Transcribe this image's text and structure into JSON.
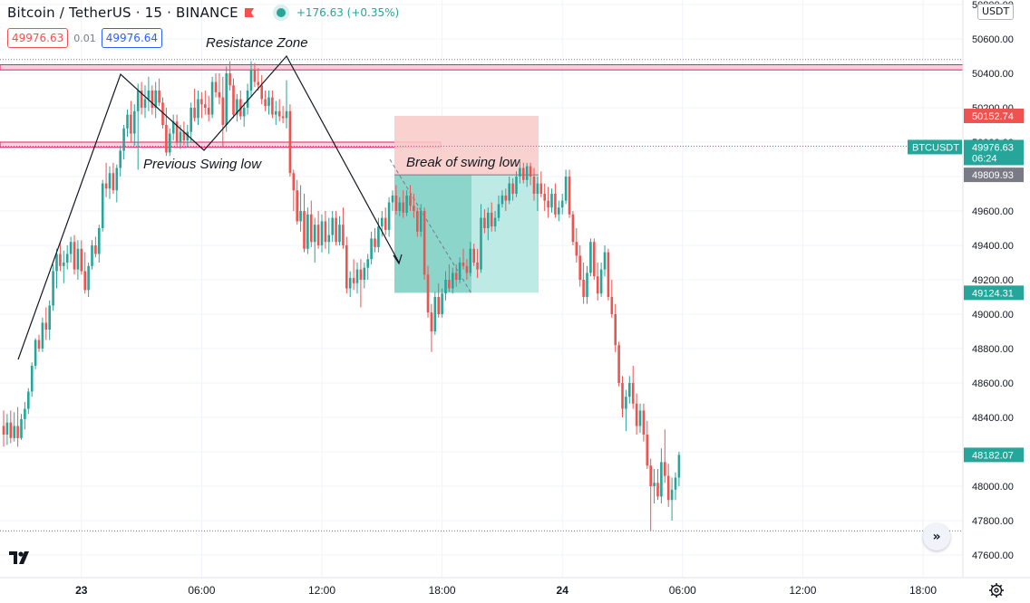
{
  "header": {
    "symbol": "Bitcoin / TetherUS · 15 · BINANCE",
    "change": "+176.63 (+0.35%)",
    "sell_price": "49976.63",
    "spread": "0.01",
    "buy_price": "49976.64",
    "currency": "USDT"
  },
  "colors": {
    "up": "#26a69a",
    "down": "#ef5350",
    "zone": "#f48fb1",
    "stop": "#f8c9c7",
    "target": "#b2e6e0"
  },
  "chart_data": {
    "type": "candlestick",
    "ylim": [
      47500,
      50850
    ],
    "y_ticks": [
      47600,
      47800,
      48000,
      48200,
      48400,
      48600,
      48800,
      49000,
      49200,
      49400,
      49600,
      49800,
      50000,
      50200,
      50400,
      50600,
      50800
    ],
    "y_tick_labels": [
      "47600.00",
      "47800.00",
      "48000.00",
      "48200.00",
      "48400.00",
      "48600.00",
      "48800.00",
      "49000.00",
      "49200.00",
      "49400.00",
      "49600.00",
      "49800.00",
      "50000.00",
      "50200.00",
      "50400.00",
      "50600.00",
      "50800.00"
    ],
    "x_ticks": [
      {
        "slot": 22,
        "label": "23",
        "bold": true
      },
      {
        "slot": 56,
        "label": "06:00"
      },
      {
        "slot": 90,
        "label": "12:00"
      },
      {
        "slot": 124,
        "label": "18:00"
      },
      {
        "slot": 158,
        "label": "24",
        "bold": true
      },
      {
        "slot": 192,
        "label": "06:00"
      },
      {
        "slot": 226,
        "label": "12:00"
      },
      {
        "slot": 260,
        "label": "18:00"
      }
    ],
    "candles": [
      [
        48350,
        48440,
        48230,
        48300
      ],
      [
        48300,
        48420,
        48240,
        48370
      ],
      [
        48370,
        48440,
        48250,
        48280
      ],
      [
        48280,
        48430,
        48260,
        48350
      ],
      [
        48350,
        48460,
        48230,
        48280
      ],
      [
        48280,
        48420,
        48270,
        48390
      ],
      [
        48390,
        48490,
        48330,
        48450
      ],
      [
        48450,
        48570,
        48420,
        48550
      ],
      [
        48550,
        48720,
        48520,
        48700
      ],
      [
        48700,
        48860,
        48680,
        48850
      ],
      [
        48850,
        48880,
        48780,
        48800
      ],
      [
        48800,
        48980,
        48780,
        48950
      ],
      [
        48950,
        49040,
        48850,
        48910
      ],
      [
        48910,
        49080,
        48850,
        49050
      ],
      [
        49050,
        49290,
        49020,
        49250
      ],
      [
        49250,
        49380,
        49150,
        49350
      ],
      [
        49350,
        49420,
        49250,
        49280
      ],
      [
        49280,
        49370,
        49180,
        49300
      ],
      [
        49300,
        49400,
        49260,
        49350
      ],
      [
        49350,
        49450,
        49300,
        49420
      ],
      [
        49420,
        49460,
        49230,
        49260
      ],
      [
        49260,
        49430,
        49200,
        49380
      ],
      [
        49380,
        49430,
        49230,
        49250
      ],
      [
        49250,
        49360,
        49120,
        49140
      ],
      [
        49140,
        49300,
        49100,
        49280
      ],
      [
        49280,
        49430,
        49260,
        49400
      ],
      [
        49400,
        49450,
        49330,
        49350
      ],
      [
        49350,
        49520,
        49300,
        49500
      ],
      [
        49500,
        49780,
        49480,
        49760
      ],
      [
        49760,
        49880,
        49680,
        49730
      ],
      [
        49730,
        49860,
        49670,
        49820
      ],
      [
        49820,
        49880,
        49700,
        49720
      ],
      [
        49720,
        49870,
        49650,
        49850
      ],
      [
        49850,
        49980,
        49800,
        49950
      ],
      [
        49950,
        50100,
        49900,
        50080
      ],
      [
        50080,
        50190,
        50030,
        50160
      ],
      [
        50160,
        50240,
        50000,
        50050
      ],
      [
        50050,
        50220,
        49980,
        50180
      ],
      [
        50180,
        50340,
        49840,
        50300
      ],
      [
        50300,
        50350,
        50160,
        50200
      ],
      [
        50200,
        50330,
        50140,
        50250
      ],
      [
        50250,
        50380,
        50180,
        50300
      ],
      [
        50300,
        50330,
        50160,
        50200
      ],
      [
        50200,
        50350,
        50140,
        50300
      ],
      [
        50300,
        50370,
        50210,
        50230
      ],
      [
        50230,
        50260,
        50080,
        50100
      ],
      [
        50100,
        50200,
        49920,
        49940
      ],
      [
        49940,
        50080,
        49920,
        50050
      ],
      [
        50050,
        50160,
        50010,
        50120
      ],
      [
        50120,
        50160,
        49980,
        50000
      ],
      [
        50000,
        50100,
        49960,
        50060
      ],
      [
        50060,
        50120,
        49980,
        50010
      ],
      [
        50010,
        50100,
        49970,
        50060
      ],
      [
        50060,
        50230,
        50000,
        50200
      ],
      [
        50200,
        50310,
        50120,
        50140
      ],
      [
        50140,
        50300,
        50100,
        50250
      ],
      [
        50250,
        50290,
        50140,
        50220
      ],
      [
        50220,
        50300,
        50160,
        50200
      ],
      [
        50200,
        50270,
        50120,
        50160
      ],
      [
        50160,
        50380,
        50140,
        50350
      ],
      [
        50350,
        50400,
        50260,
        50290
      ],
      [
        50290,
        50400,
        50220,
        50260
      ],
      [
        50260,
        50380,
        49970,
        50100
      ],
      [
        50100,
        50440,
        50060,
        50400
      ],
      [
        50400,
        50470,
        50300,
        50330
      ],
      [
        50330,
        50370,
        50140,
        50160
      ],
      [
        50160,
        50280,
        50120,
        50250
      ],
      [
        50250,
        50300,
        50130,
        50150
      ],
      [
        50150,
        50230,
        50090,
        50200
      ],
      [
        50200,
        50340,
        50160,
        50300
      ],
      [
        50300,
        50470,
        50260,
        50420
      ],
      [
        50420,
        50460,
        50320,
        50350
      ],
      [
        50350,
        50430,
        50300,
        50330
      ],
      [
        50330,
        50390,
        50220,
        50250
      ],
      [
        50250,
        50300,
        50180,
        50210
      ],
      [
        50210,
        50300,
        50160,
        50260
      ],
      [
        50260,
        50300,
        50140,
        50160
      ],
      [
        50160,
        50240,
        50100,
        50180
      ],
      [
        50180,
        50250,
        50120,
        50150
      ],
      [
        50150,
        50210,
        50110,
        50140
      ],
      [
        50140,
        50360,
        50080,
        50180
      ],
      [
        50180,
        50220,
        49800,
        49820
      ],
      [
        49820,
        49840,
        49600,
        49720
      ],
      [
        49720,
        49780,
        49520,
        49540
      ],
      [
        49540,
        49750,
        49480,
        49600
      ],
      [
        49600,
        49700,
        49360,
        49380
      ],
      [
        49380,
        49620,
        49350,
        49580
      ],
      [
        49580,
        49660,
        49390,
        49420
      ],
      [
        49420,
        49560,
        49300,
        49520
      ],
      [
        49520,
        49600,
        49380,
        49400
      ],
      [
        49400,
        49580,
        49360,
        49540
      ],
      [
        49540,
        49600,
        49380,
        49420
      ],
      [
        49420,
        49560,
        49350,
        49460
      ],
      [
        49460,
        49600,
        49420,
        49560
      ],
      [
        49560,
        49600,
        49400,
        49420
      ],
      [
        49420,
        49570,
        49400,
        49520
      ],
      [
        49520,
        49620,
        49380,
        49400
      ],
      [
        49400,
        49450,
        49120,
        49150
      ],
      [
        49150,
        49250,
        49100,
        49210
      ],
      [
        49210,
        49320,
        49140,
        49180
      ],
      [
        49180,
        49300,
        49120,
        49260
      ],
      [
        49260,
        49320,
        49040,
        49200
      ],
      [
        49200,
        49300,
        49150,
        49270
      ],
      [
        49270,
        49350,
        49200,
        49320
      ],
      [
        49320,
        49480,
        49290,
        49440
      ],
      [
        49440,
        49500,
        49360,
        49390
      ],
      [
        49390,
        49560,
        49360,
        49510
      ],
      [
        49510,
        49600,
        49450,
        49560
      ],
      [
        49560,
        49620,
        49460,
        49490
      ],
      [
        49490,
        49680,
        49450,
        49650
      ],
      [
        49650,
        49720,
        49600,
        49690
      ],
      [
        49690,
        49750,
        49580,
        49600
      ],
      [
        49600,
        49680,
        49570,
        49650
      ],
      [
        49650,
        49720,
        49560,
        49590
      ],
      [
        49590,
        49720,
        49570,
        49690
      ],
      [
        49690,
        49750,
        49600,
        49630
      ],
      [
        49630,
        49700,
        49560,
        49600
      ],
      [
        49600,
        49620,
        49450,
        49480
      ],
      [
        49480,
        49640,
        49450,
        49600
      ],
      [
        49600,
        49620,
        49200,
        49230
      ],
      [
        49230,
        49280,
        48980,
        49010
      ],
      [
        49010,
        49060,
        48780,
        48900
      ],
      [
        48900,
        49130,
        48880,
        49100
      ],
      [
        49100,
        49180,
        48980,
        49000
      ],
      [
        49000,
        49150,
        48980,
        49120
      ],
      [
        49120,
        49250,
        49080,
        49200
      ],
      [
        49200,
        49290,
        49130,
        49150
      ],
      [
        49150,
        49270,
        49120,
        49240
      ],
      [
        49240,
        49290,
        49160,
        49200
      ],
      [
        49200,
        49330,
        49180,
        49300
      ],
      [
        49300,
        49380,
        49260,
        49280
      ],
      [
        49280,
        49320,
        49200,
        49240
      ],
      [
        49240,
        49420,
        49220,
        49380
      ],
      [
        49380,
        49410,
        49280,
        49300
      ],
      [
        49300,
        49380,
        49210,
        49260
      ],
      [
        49260,
        49640,
        49240,
        49560
      ],
      [
        49560,
        49610,
        49470,
        49500
      ],
      [
        49500,
        49620,
        49430,
        49590
      ],
      [
        49590,
        49650,
        49480,
        49510
      ],
      [
        49510,
        49600,
        49480,
        49560
      ],
      [
        49560,
        49690,
        49540,
        49640
      ],
      [
        49640,
        49720,
        49620,
        49690
      ],
      [
        49690,
        49730,
        49600,
        49660
      ],
      [
        49660,
        49800,
        49640,
        49760
      ],
      [
        49760,
        49790,
        49660,
        49700
      ],
      [
        49700,
        49830,
        49680,
        49800
      ],
      [
        49800,
        49890,
        49760,
        49850
      ],
      [
        49850,
        49880,
        49760,
        49780
      ],
      [
        49780,
        49880,
        49740,
        49860
      ],
      [
        49860,
        49880,
        49750,
        49800
      ],
      [
        49800,
        49850,
        49660,
        49700
      ],
      [
        49700,
        49800,
        49600,
        49760
      ],
      [
        49760,
        49830,
        49680,
        49700
      ],
      [
        49700,
        49760,
        49600,
        49660
      ],
      [
        49660,
        49740,
        49560,
        49620
      ],
      [
        49620,
        49730,
        49590,
        49700
      ],
      [
        49700,
        49760,
        49560,
        49580
      ],
      [
        49580,
        49660,
        49540,
        49620
      ],
      [
        49620,
        49700,
        49580,
        49660
      ],
      [
        49660,
        49840,
        49640,
        49800
      ],
      [
        49800,
        49840,
        49560,
        49580
      ],
      [
        49580,
        49600,
        49400,
        49420
      ],
      [
        49420,
        49500,
        49300,
        49340
      ],
      [
        49340,
        49400,
        49160,
        49200
      ],
      [
        49200,
        49300,
        49060,
        49100
      ],
      [
        49100,
        49280,
        49060,
        49240
      ],
      [
        49240,
        49440,
        49220,
        49420
      ],
      [
        49420,
        49440,
        49200,
        49220
      ],
      [
        49220,
        49300,
        49080,
        49120
      ],
      [
        49120,
        49300,
        49100,
        49260
      ],
      [
        49260,
        49400,
        49220,
        49360
      ],
      [
        49360,
        49380,
        49080,
        49100
      ],
      [
        49100,
        49200,
        48980,
        49000
      ],
      [
        49000,
        49060,
        48780,
        48820
      ],
      [
        48820,
        48840,
        48580,
        48600
      ],
      [
        48600,
        48640,
        48400,
        48450
      ],
      [
        48450,
        48560,
        48320,
        48520
      ],
      [
        48520,
        48640,
        48480,
        48600
      ],
      [
        48600,
        48700,
        48450,
        48480
      ],
      [
        48480,
        48540,
        48300,
        48350
      ],
      [
        48350,
        48480,
        48310,
        48440
      ],
      [
        48440,
        48480,
        48260,
        48300
      ],
      [
        48300,
        48380,
        48100,
        48120
      ],
      [
        48120,
        48160,
        47740,
        48000
      ],
      [
        48000,
        48100,
        47900,
        48020
      ],
      [
        48020,
        48100,
        47920,
        47940
      ],
      [
        47940,
        48220,
        47900,
        48140
      ],
      [
        48140,
        48330,
        48020,
        48060
      ],
      [
        48060,
        48130,
        47880,
        47920
      ],
      [
        47920,
        48050,
        47800,
        47980
      ],
      [
        47980,
        48080,
        47920,
        48050
      ],
      [
        48050,
        48200,
        48000,
        48182
      ]
    ],
    "annotations": [
      {
        "text": "Resistance Zone"
      },
      {
        "text": "Previous Swing low"
      },
      {
        "text": "Break of swing low"
      }
    ],
    "zones": [
      {
        "type": "resistance",
        "from": 50420,
        "to": 50450
      },
      {
        "type": "swing-low",
        "from": 49970,
        "to": 50000
      }
    ],
    "position": {
      "entry": 49809.93,
      "stop": 50152.74,
      "target": 49124.31
    },
    "price_labels": [
      {
        "text": "50152.74",
        "value": 50152.74,
        "color": "#ef5350"
      },
      {
        "text": "49976.63",
        "value": 49976.63,
        "color": "#26a69a",
        "extra": "06:24",
        "tag": "BTCUSDT"
      },
      {
        "text": "49809.93",
        "value": 49809.93,
        "color": "#787b86"
      },
      {
        "text": "49124.31",
        "value": 49124.31,
        "color": "#26a69a"
      },
      {
        "text": "48182.07",
        "value": 48182.07,
        "color": "#26a69a"
      }
    ]
  }
}
